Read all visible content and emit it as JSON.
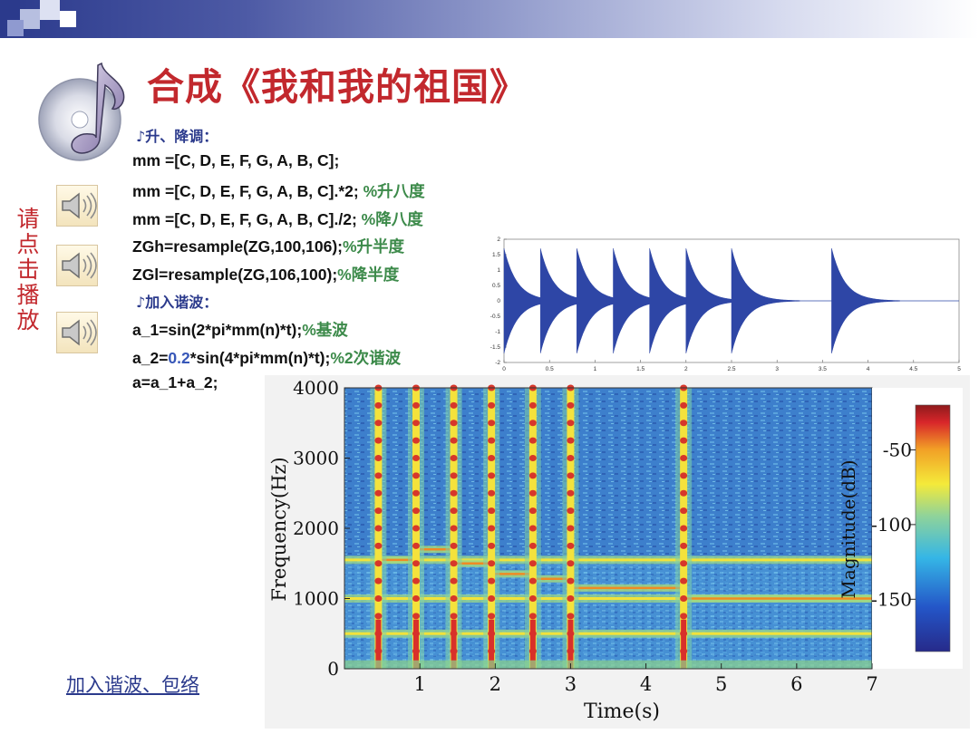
{
  "slide": {
    "title": "合成《我和我的祖国》",
    "side_label": [
      "请",
      "点",
      "击",
      "播",
      "放"
    ],
    "bottom_link": "加入谐波、包络",
    "colors": {
      "title": "#c2282d",
      "code": "#111111",
      "comment": "#3c8a4a",
      "number": "#3757b8",
      "heading": "#2b3a8c"
    }
  },
  "code": {
    "heading1": "♪升、降调：",
    "line1": "mm =[C, D, E, F, G, A, B, C];",
    "line2_code": "mm =[C, D, E, F, G, A, B, C].*2; ",
    "line2_comment": "%升八度",
    "line3_code": "mm =[C, D, E, F, G, A, B, C]./2; ",
    "line3_comment": "%降八度",
    "line4_code": "ZGh=resample(ZG,100,106);",
    "line4_comment": "%升半度",
    "line5_code": "ZGl=resample(ZG,106,100);",
    "line5_comment": "%降半度",
    "heading2": "♪加入谐波：",
    "line6_code": "a_1=sin(2*pi*mm(n)*t);",
    "line6_comment": "%基波",
    "line7_pre": "a_2=",
    "line7_num": "0.2",
    "line7_code": "*sin(4*pi*mm(n)*t);",
    "line7_comment": "%2次谐波",
    "line8": "a=a_1+a_2;"
  },
  "speakers": [
    {
      "icon": "speaker-icon"
    },
    {
      "icon": "speaker-icon"
    },
    {
      "icon": "speaker-icon"
    }
  ],
  "chart_data": [
    {
      "type": "line",
      "title": "",
      "xlim": [
        0,
        5
      ],
      "ylim": [
        -2,
        2
      ],
      "x_ticks": [
        "0",
        "0.5",
        "1",
        "1.5",
        "2",
        "2.5",
        "3",
        "3.5",
        "4",
        "4.5",
        "5"
      ],
      "y_ticks": [
        "2",
        "1.5",
        "1",
        "0.5",
        "0",
        "-0.5",
        "-1",
        "-1.5",
        "-2"
      ],
      "note_onsets_s": [
        0.0,
        0.4,
        0.8,
        1.2,
        1.6,
        2.0,
        2.5,
        3.6
      ],
      "peak_amplitude": 1.7,
      "series_color": "#2e46a6"
    },
    {
      "type": "heatmap",
      "xlabel": "Time(s)",
      "ylabel": "Frequency(Hz)",
      "colorbar_label": "Magnitude(dB)",
      "xlim": [
        0,
        7
      ],
      "ylim": [
        0,
        4000
      ],
      "x_ticks": [
        "1",
        "2",
        "3",
        "4",
        "5",
        "6",
        "7"
      ],
      "y_ticks": [
        "0",
        "1000",
        "2000",
        "3000",
        "4000"
      ],
      "colorbar_ticks": [
        "-50",
        "-100",
        "-150"
      ],
      "note_onsets_s": [
        0.45,
        0.95,
        1.45,
        1.95,
        2.5,
        3.0,
        4.5
      ],
      "harmonic_lines_hz": [
        500,
        1000,
        1550
      ],
      "note_frequencies_hz": [
        1550,
        1700,
        1500,
        1350,
        1280,
        1150,
        1000
      ]
    }
  ]
}
